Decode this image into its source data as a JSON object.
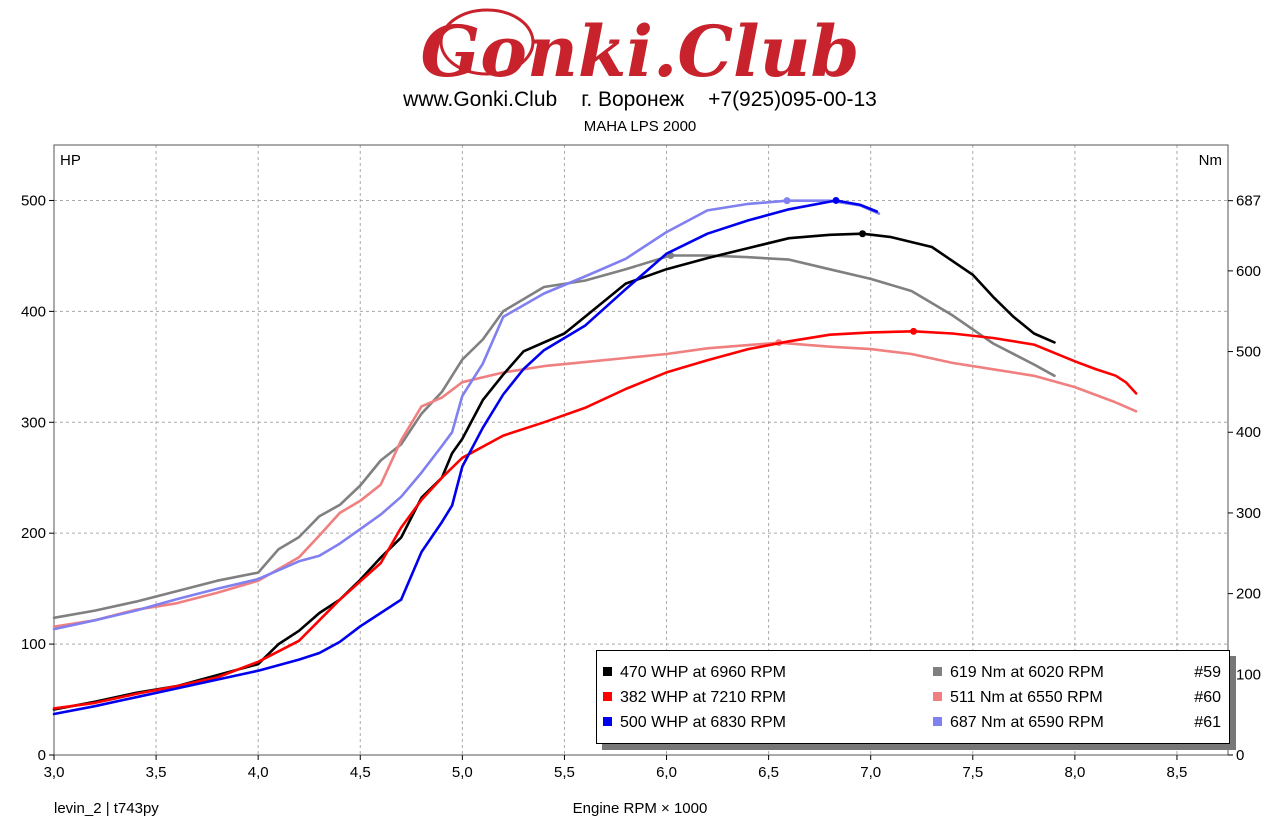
{
  "header": {
    "logo_text": "Gonki.Club",
    "website": "www.Gonki.Club",
    "city": "г. Воронеж",
    "phone": "+7(925)095-00-13",
    "machine": "MAHA LPS 2000"
  },
  "footer": {
    "left": "levin_2 | t743py",
    "xlabel": "Engine RPM × 1000"
  },
  "legend": [
    {
      "label": "470 WHP at 6960 RPM",
      "color": "#000000"
    },
    {
      "label": "619 Nm at 6020 RPM",
      "color": "#808080"
    },
    {
      "label": "382 WHP at 7210 RPM",
      "color": "#ff0000"
    },
    {
      "label": "511 Nm at 6550 RPM",
      "color": "#f08080"
    },
    {
      "label": "500 WHP at 6830 RPM",
      "color": "#0000ee"
    },
    {
      "label": "687 Nm at 6590 RPM",
      "color": "#8080f0"
    }
  ],
  "runs": [
    "#59",
    "#60",
    "#61"
  ],
  "chart_data": {
    "type": "line",
    "xlabel": "Engine RPM × 1000",
    "ylabel_left": "HP",
    "ylabel_right": "Nm",
    "xlim": [
      3.0,
      8.75
    ],
    "ylim_left": [
      0,
      550
    ],
    "ylim_right": [
      0,
      756
    ],
    "x_ticks": [
      "3,0",
      "3,5",
      "4,0",
      "4,5",
      "5,0",
      "5,5",
      "6,0",
      "6,5",
      "7,0",
      "7,5",
      "8,0",
      "8,5"
    ],
    "y_ticks_left": [
      "0",
      "100",
      "200",
      "300",
      "400",
      "500"
    ],
    "y_ticks_right": [
      "0",
      "100",
      "200",
      "300",
      "400",
      "500",
      "600",
      "687"
    ],
    "grid": true,
    "series": [
      {
        "name": "470 WHP at 6960 RPM",
        "axis": "left",
        "color": "#000000",
        "peak": [
          6.96,
          470
        ],
        "points": [
          [
            3.0,
            41
          ],
          [
            3.2,
            48
          ],
          [
            3.4,
            56
          ],
          [
            3.6,
            62
          ],
          [
            3.8,
            72
          ],
          [
            4.0,
            82
          ],
          [
            4.1,
            100
          ],
          [
            4.2,
            112
          ],
          [
            4.3,
            128
          ],
          [
            4.4,
            140
          ],
          [
            4.5,
            158
          ],
          [
            4.6,
            178
          ],
          [
            4.7,
            196
          ],
          [
            4.8,
            232
          ],
          [
            4.9,
            250
          ],
          [
            4.95,
            272
          ],
          [
            5.0,
            285
          ],
          [
            5.1,
            320
          ],
          [
            5.2,
            343
          ],
          [
            5.3,
            364
          ],
          [
            5.5,
            380
          ],
          [
            5.6,
            395
          ],
          [
            5.7,
            410
          ],
          [
            5.8,
            425
          ],
          [
            6.0,
            438
          ],
          [
            6.2,
            448
          ],
          [
            6.4,
            457
          ],
          [
            6.6,
            466
          ],
          [
            6.8,
            469
          ],
          [
            6.96,
            470
          ],
          [
            7.1,
            467
          ],
          [
            7.3,
            458
          ],
          [
            7.5,
            433
          ],
          [
            7.6,
            413
          ],
          [
            7.7,
            395
          ],
          [
            7.8,
            380
          ],
          [
            7.9,
            372
          ]
        ]
      },
      {
        "name": "382 WHP at 7210 RPM",
        "axis": "left",
        "color": "#ff0000",
        "peak": [
          7.21,
          382
        ],
        "points": [
          [
            3.0,
            42
          ],
          [
            3.2,
            47
          ],
          [
            3.4,
            55
          ],
          [
            3.6,
            62
          ],
          [
            3.8,
            70
          ],
          [
            4.0,
            84
          ],
          [
            4.2,
            103
          ],
          [
            4.4,
            140
          ],
          [
            4.6,
            173
          ],
          [
            4.7,
            205
          ],
          [
            4.8,
            230
          ],
          [
            4.9,
            250
          ],
          [
            5.0,
            268
          ],
          [
            5.2,
            288
          ],
          [
            5.4,
            300
          ],
          [
            5.6,
            313
          ],
          [
            5.8,
            330
          ],
          [
            6.0,
            345
          ],
          [
            6.2,
            356
          ],
          [
            6.4,
            366
          ],
          [
            6.6,
            373
          ],
          [
            6.8,
            379
          ],
          [
            7.0,
            381
          ],
          [
            7.21,
            382
          ],
          [
            7.4,
            380
          ],
          [
            7.6,
            376
          ],
          [
            7.8,
            370
          ],
          [
            8.0,
            355
          ],
          [
            8.1,
            348
          ],
          [
            8.2,
            342
          ],
          [
            8.25,
            336
          ],
          [
            8.3,
            326
          ]
        ]
      },
      {
        "name": "500 WHP at 6830 RPM",
        "axis": "left",
        "color": "#0000ee",
        "peak": [
          6.83,
          500
        ],
        "points": [
          [
            3.0,
            37
          ],
          [
            3.2,
            44
          ],
          [
            3.4,
            52
          ],
          [
            3.6,
            60
          ],
          [
            3.8,
            68
          ],
          [
            4.0,
            76
          ],
          [
            4.2,
            86
          ],
          [
            4.3,
            92
          ],
          [
            4.4,
            102
          ],
          [
            4.5,
            116
          ],
          [
            4.6,
            128
          ],
          [
            4.7,
            140
          ],
          [
            4.8,
            183
          ],
          [
            4.9,
            210
          ],
          [
            4.95,
            225
          ],
          [
            5.0,
            260
          ],
          [
            5.1,
            295
          ],
          [
            5.2,
            325
          ],
          [
            5.3,
            348
          ],
          [
            5.4,
            365
          ],
          [
            5.6,
            387
          ],
          [
            5.8,
            420
          ],
          [
            6.0,
            452
          ],
          [
            6.2,
            470
          ],
          [
            6.4,
            482
          ],
          [
            6.6,
            492
          ],
          [
            6.83,
            500
          ],
          [
            6.95,
            496
          ],
          [
            7.03,
            490
          ]
        ]
      },
      {
        "name": "619 Nm at 6020 RPM",
        "axis": "right",
        "color": "#808080",
        "peak": [
          6.02,
          619
        ],
        "points": [
          [
            3.0,
            170
          ],
          [
            3.2,
            179
          ],
          [
            3.4,
            190
          ],
          [
            3.6,
            203
          ],
          [
            3.8,
            216
          ],
          [
            4.0,
            226
          ],
          [
            4.1,
            255
          ],
          [
            4.2,
            270
          ],
          [
            4.3,
            296
          ],
          [
            4.4,
            310
          ],
          [
            4.5,
            334
          ],
          [
            4.6,
            365
          ],
          [
            4.7,
            385
          ],
          [
            4.8,
            423
          ],
          [
            4.9,
            450
          ],
          [
            5.0,
            490
          ],
          [
            5.1,
            515
          ],
          [
            5.2,
            550
          ],
          [
            5.3,
            565
          ],
          [
            5.4,
            580
          ],
          [
            5.6,
            588
          ],
          [
            5.8,
            602
          ],
          [
            6.02,
            619
          ],
          [
            6.2,
            619
          ],
          [
            6.4,
            617
          ],
          [
            6.6,
            614
          ],
          [
            6.8,
            602
          ],
          [
            7.0,
            590
          ],
          [
            7.2,
            575
          ],
          [
            7.4,
            545
          ],
          [
            7.6,
            510
          ],
          [
            7.8,
            484
          ],
          [
            7.9,
            470
          ]
        ]
      },
      {
        "name": "511 Nm at 6550 RPM",
        "axis": "right",
        "color": "#f08080",
        "peak": [
          6.55,
          511
        ],
        "points": [
          [
            3.0,
            159
          ],
          [
            3.2,
            167
          ],
          [
            3.4,
            180
          ],
          [
            3.6,
            188
          ],
          [
            3.8,
            201
          ],
          [
            4.0,
            216
          ],
          [
            4.2,
            245
          ],
          [
            4.3,
            272
          ],
          [
            4.4,
            300
          ],
          [
            4.5,
            315
          ],
          [
            4.6,
            335
          ],
          [
            4.7,
            390
          ],
          [
            4.8,
            432
          ],
          [
            4.9,
            443
          ],
          [
            5.0,
            462
          ],
          [
            5.2,
            474
          ],
          [
            5.4,
            482
          ],
          [
            5.6,
            487
          ],
          [
            5.8,
            492
          ],
          [
            6.0,
            497
          ],
          [
            6.2,
            504
          ],
          [
            6.4,
            508
          ],
          [
            6.55,
            511
          ],
          [
            6.8,
            506
          ],
          [
            7.0,
            503
          ],
          [
            7.2,
            497
          ],
          [
            7.4,
            486
          ],
          [
            7.6,
            478
          ],
          [
            7.8,
            470
          ],
          [
            8.0,
            456
          ],
          [
            8.2,
            437
          ],
          [
            8.3,
            426
          ]
        ]
      },
      {
        "name": "687 Nm at 6590 RPM",
        "axis": "right",
        "color": "#8080f0",
        "peak": [
          6.59,
          687
        ],
        "points": [
          [
            3.0,
            156
          ],
          [
            3.2,
            167
          ],
          [
            3.4,
            179
          ],
          [
            3.6,
            193
          ],
          [
            3.8,
            206
          ],
          [
            4.0,
            218
          ],
          [
            4.2,
            240
          ],
          [
            4.3,
            247
          ],
          [
            4.4,
            262
          ],
          [
            4.5,
            280
          ],
          [
            4.6,
            298
          ],
          [
            4.7,
            320
          ],
          [
            4.8,
            350
          ],
          [
            4.9,
            383
          ],
          [
            4.95,
            400
          ],
          [
            5.0,
            445
          ],
          [
            5.1,
            485
          ],
          [
            5.2,
            543
          ],
          [
            5.4,
            572
          ],
          [
            5.6,
            593
          ],
          [
            5.8,
            615
          ],
          [
            6.0,
            648
          ],
          [
            6.2,
            675
          ],
          [
            6.4,
            683
          ],
          [
            6.59,
            687
          ],
          [
            6.8,
            687
          ],
          [
            6.95,
            681
          ],
          [
            7.04,
            671
          ]
        ]
      }
    ]
  }
}
